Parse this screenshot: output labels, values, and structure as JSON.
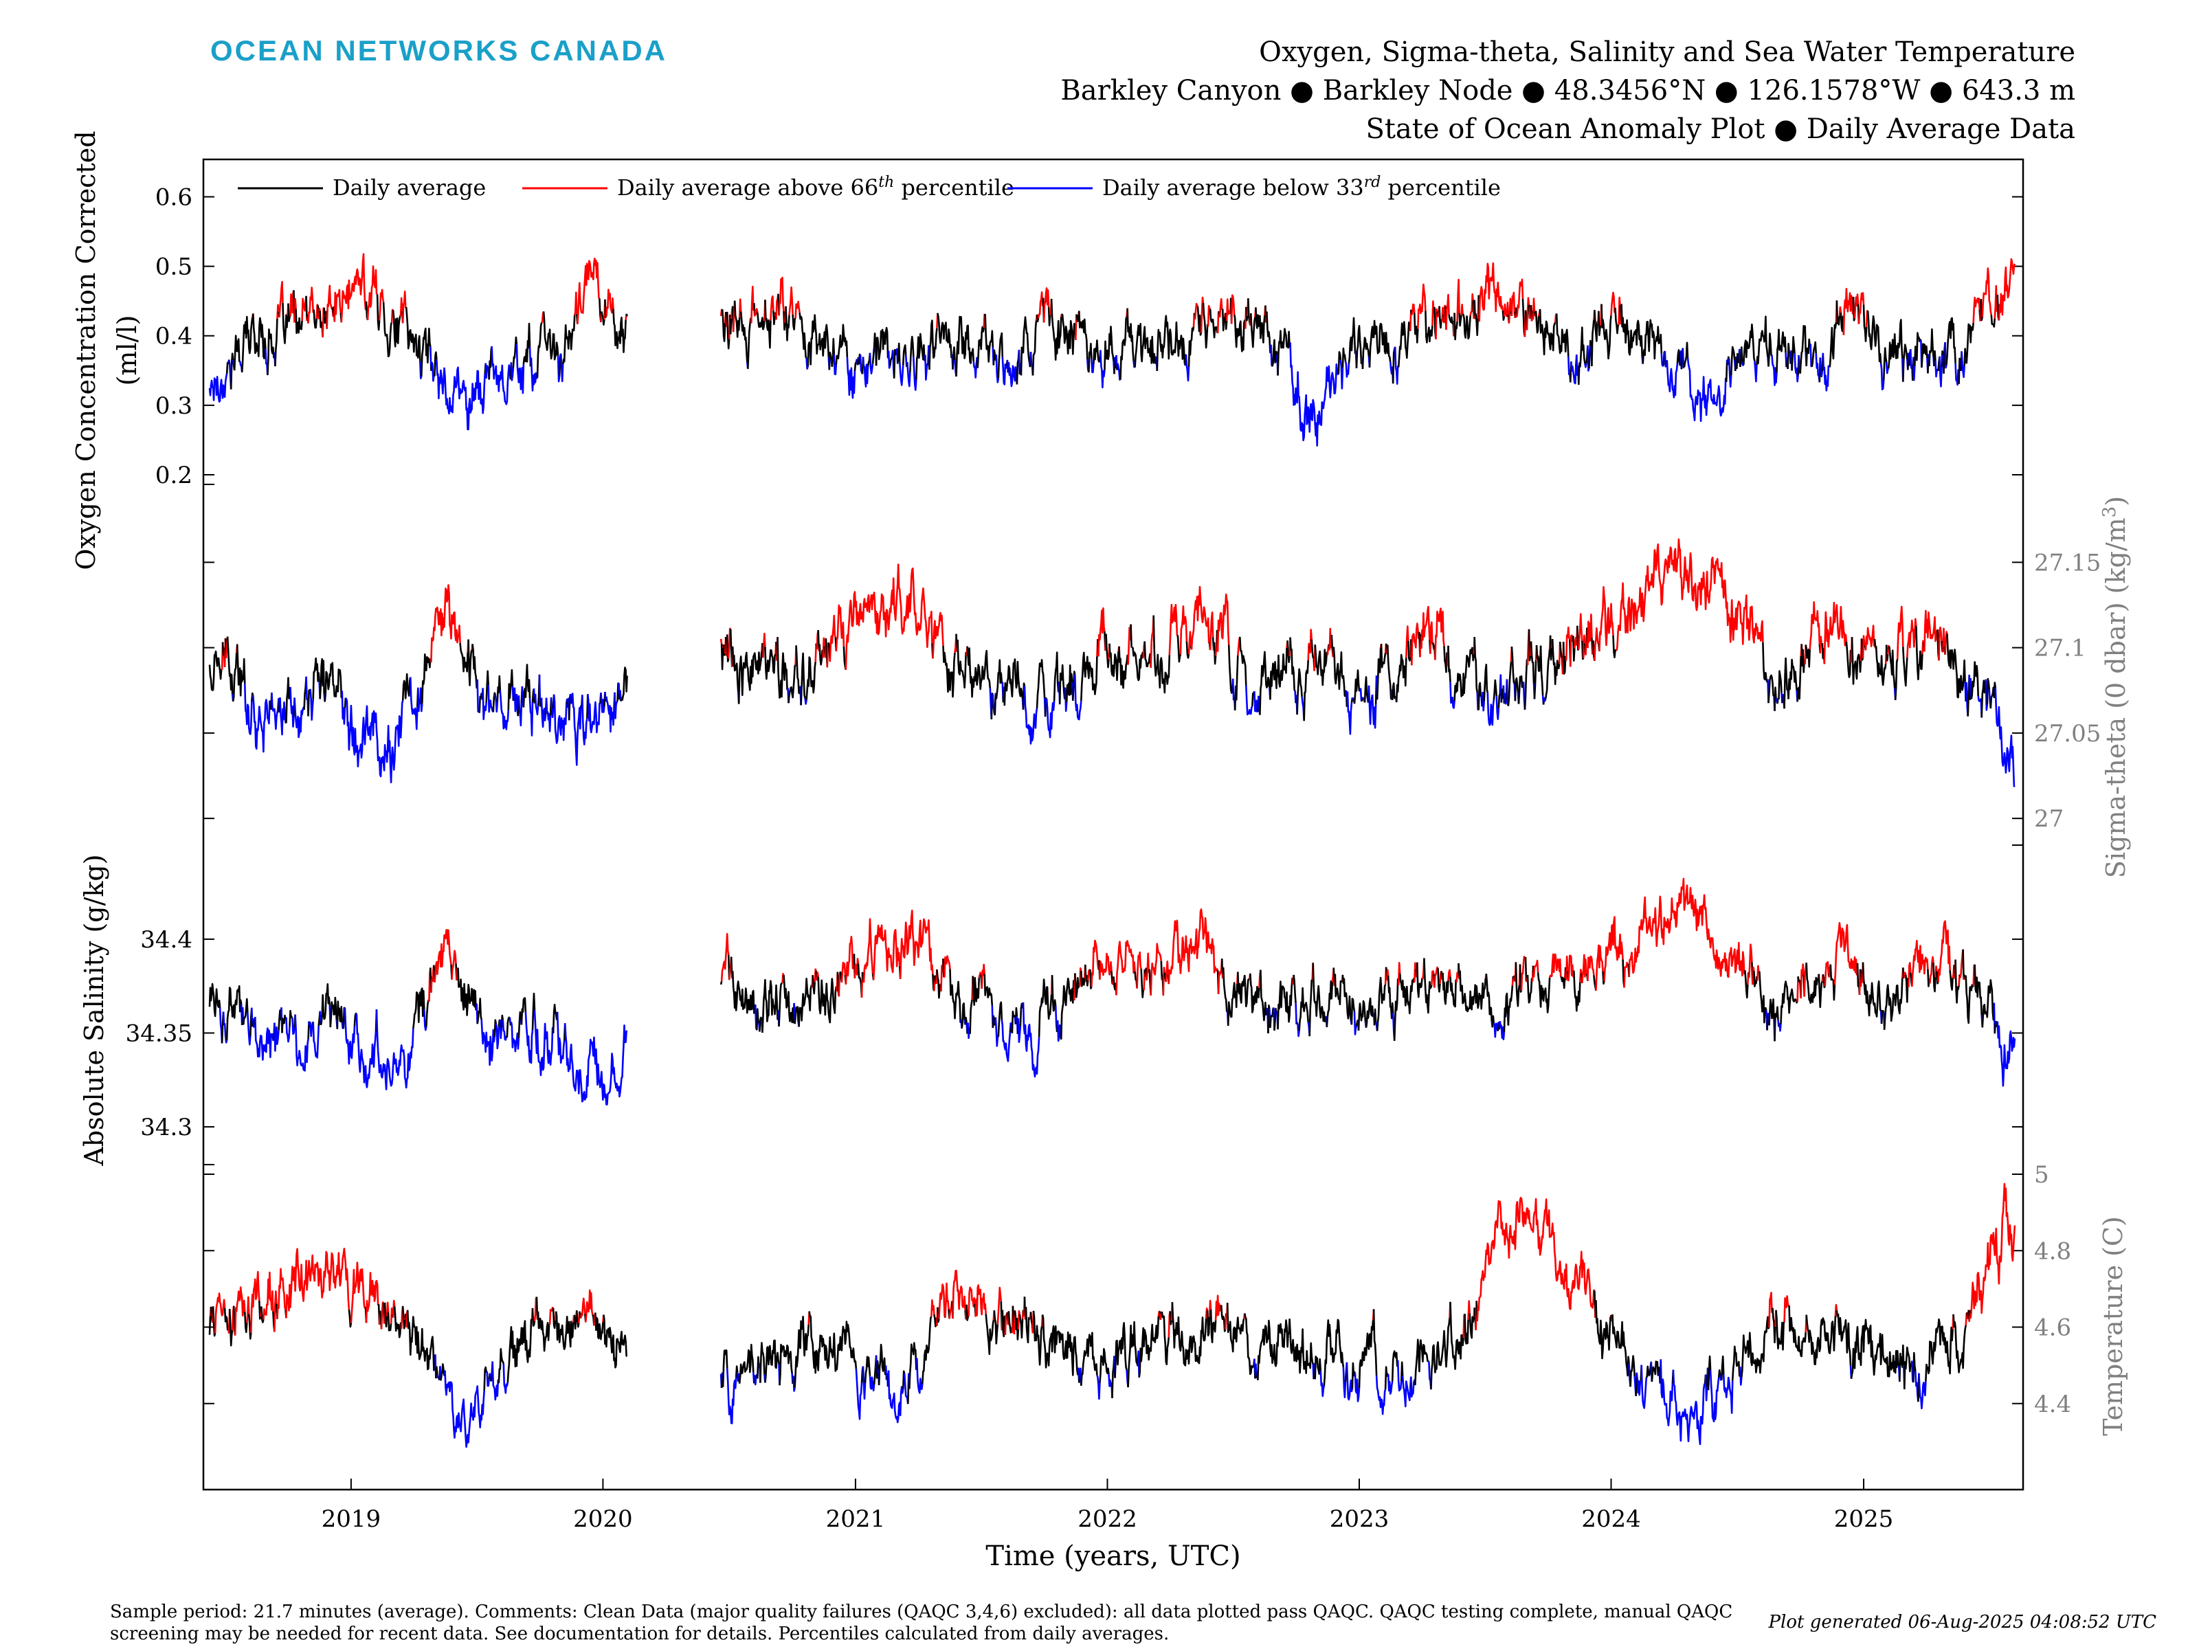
{
  "logo_text": "OCEAN NETWORKS CANADA",
  "title_lines": [
    "Oxygen, Sigma-theta, Salinity and Sea Water Temperature",
    "Barkley Canyon ● Barkley Node ● 48.3456°N ● 126.1578°W ● 643.3 m",
    "State of Ocean Anomaly Plot ● Daily Average Data"
  ],
  "footer_text": "Sample period: 21.7 minutes (average). Comments: Clean Data (major quality failures (QAQC 3,4,6) excluded): all data plotted pass QAQC. QAQC testing complete, manual QAQC screening may be needed for recent data. See documentation for details. Percentiles calculated from daily averages.",
  "generated_text": "Plot generated 06-Aug-2025 04:08:52 UTC",
  "colors": {
    "average": "#000000",
    "above": "#ff0000",
    "below": "#0000ff",
    "right_axis": "#808080",
    "logo": "#1aa0c8"
  },
  "chart_data": {
    "type": "line",
    "xlabel": "Time (years, UTC)",
    "xlim": [
      "2018-06-01",
      "2025-08-20"
    ],
    "x_ticks": [
      "2019",
      "2020",
      "2021",
      "2022",
      "2023",
      "2024",
      "2025"
    ],
    "data_gap": [
      "2020-02-05",
      "2020-06-20"
    ],
    "legend": {
      "placement": "top-left",
      "entries": [
        {
          "name": "Daily average",
          "color": "#000000"
        },
        {
          "name": "Daily average above 66",
          "sup": "th",
          "suffix": " percentile",
          "color": "#ff0000"
        },
        {
          "name": "Daily average below 33",
          "sup": "rd",
          "suffix": " percentile",
          "color": "#0000ff"
        }
      ]
    },
    "panels": [
      {
        "id": "oxygen",
        "ylabel": "Oxygen Concentration Corrected",
        "ylabel_line2": "(ml/l)",
        "axis_side": "left",
        "ylim": [
          0.2,
          0.64
        ],
        "yticks": [
          "0.2",
          "0.3",
          "0.4",
          "0.5",
          "0.6"
        ],
        "percentile_66": 0.43,
        "percentile_33": 0.36,
        "series": [
          {
            "x": [
              "2018-06-10",
              "2018-08-15",
              "2018-11-15",
              "2019-01-20",
              "2019-04-15",
              "2019-06-15",
              "2019-08-15",
              "2019-11-10",
              "2019-12-20",
              "2020-02-01",
              "2020-06-25",
              "2020-09-15",
              "2020-12-15",
              "2021-03-15",
              "2021-05-20",
              "2021-08-01",
              "2021-10-25",
              "2022-01-10",
              "2022-04-20",
              "2022-06-15",
              "2022-08-20",
              "2022-10-25",
              "2023-01-01",
              "2023-03-15",
              "2023-05-20",
              "2023-08-25",
              "2023-11-15",
              "2024-01-15",
              "2024-03-20",
              "2024-05-15",
              "2024-08-01",
              "2024-10-15",
              "2024-12-15",
              "2025-03-15",
              "2025-05-25",
              "2025-08-08"
            ],
            "values": [
              0.33,
              0.4,
              0.42,
              0.47,
              0.38,
              0.31,
              0.36,
              0.38,
              0.5,
              0.39,
              0.39,
              0.44,
              0.37,
              0.36,
              0.4,
              0.37,
              0.42,
              0.38,
              0.4,
              0.43,
              0.42,
              0.27,
              0.4,
              0.41,
              0.43,
              0.44,
              0.38,
              0.44,
              0.37,
              0.31,
              0.4,
              0.37,
              0.43,
              0.37,
              0.38,
              0.47
            ]
          }
        ]
      },
      {
        "id": "sigma",
        "ylabel": "Sigma-theta (0 dbar) (kg/m",
        "ylabel_sup": "3",
        "ylabel_tail": ")",
        "axis_side": "right",
        "ylim": [
          26.99,
          27.19
        ],
        "yticks": [
          "27",
          "27.05",
          "27.1",
          "27.15"
        ],
        "percentile_66": 27.1,
        "percentile_33": 27.07,
        "series": [
          {
            "x": [
              "2018-06-10",
              "2018-09-15",
              "2018-12-10",
              "2019-03-01",
              "2019-05-20",
              "2019-07-15",
              "2019-10-01",
              "2019-12-20",
              "2020-02-01",
              "2020-06-25",
              "2020-10-01",
              "2021-01-20",
              "2021-03-20",
              "2021-06-15",
              "2021-09-15",
              "2021-12-15",
              "2022-03-15",
              "2022-05-15",
              "2022-08-01",
              "2022-11-01",
              "2023-01-15",
              "2023-04-15",
              "2023-07-15",
              "2023-10-15",
              "2024-01-10",
              "2024-04-01",
              "2024-06-15",
              "2024-09-01",
              "2024-11-15",
              "2025-02-01",
              "2025-05-01",
              "2025-06-20",
              "2025-08-08"
            ],
            "values": [
              27.09,
              27.06,
              27.08,
              27.04,
              27.12,
              27.07,
              27.07,
              27.05,
              27.07,
              27.1,
              27.08,
              27.12,
              27.13,
              27.08,
              27.06,
              27.1,
              27.09,
              27.12,
              27.07,
              27.09,
              27.08,
              27.1,
              27.07,
              27.09,
              27.12,
              27.15,
              27.12,
              27.08,
              27.11,
              27.08,
              27.11,
              27.07,
              27.02
            ]
          }
        ]
      },
      {
        "id": "salinity",
        "ylabel": "Absolute Salinity (g/kg)",
        "axis_side": "left",
        "ylim": [
          34.285,
          34.445
        ],
        "yticks": [
          "34.3",
          "34.35",
          "34.4"
        ],
        "percentile_66": 34.38,
        "percentile_33": 34.355,
        "series": [
          {
            "x": [
              "2018-06-10",
              "2018-09-15",
              "2018-12-10",
              "2019-03-01",
              "2019-05-20",
              "2019-07-15",
              "2019-10-01",
              "2019-12-20",
              "2020-02-01",
              "2020-06-25",
              "2020-10-01",
              "2021-01-20",
              "2021-03-20",
              "2021-06-15",
              "2021-09-15",
              "2021-12-15",
              "2022-03-15",
              "2022-05-15",
              "2022-08-01",
              "2022-11-01",
              "2023-01-15",
              "2023-04-15",
              "2023-07-15",
              "2023-10-15",
              "2024-01-10",
              "2024-04-01",
              "2024-06-15",
              "2024-09-01",
              "2024-11-15",
              "2025-02-01",
              "2025-05-01",
              "2025-06-20",
              "2025-08-08"
            ],
            "values": [
              34.37,
              34.34,
              34.36,
              34.33,
              34.39,
              34.35,
              34.35,
              34.33,
              34.35,
              34.38,
              34.36,
              34.39,
              34.4,
              34.37,
              34.35,
              34.39,
              34.38,
              34.4,
              34.36,
              34.37,
              34.36,
              34.38,
              34.36,
              34.38,
              34.39,
              34.42,
              34.4,
              34.36,
              34.39,
              34.37,
              34.39,
              34.36,
              34.34
            ]
          }
        ]
      },
      {
        "id": "temperature",
        "ylabel": "Temperature (C)",
        "axis_side": "right",
        "ylim": [
          4.2,
          5.0
        ],
        "yticks": [
          "4.4",
          "4.6",
          "4.8",
          "5"
        ],
        "percentile_66": 4.63,
        "percentile_33": 4.47,
        "series": [
          {
            "x": [
              "2018-06-10",
              "2018-09-01",
              "2018-12-01",
              "2019-02-15",
              "2019-05-01",
              "2019-06-20",
              "2019-09-01",
              "2019-11-20",
              "2020-02-01",
              "2020-06-25",
              "2020-09-15",
              "2020-12-15",
              "2021-03-01",
              "2021-06-01",
              "2021-09-01",
              "2021-12-01",
              "2022-03-01",
              "2022-05-20",
              "2022-08-15",
              "2022-11-15",
              "2023-02-15",
              "2023-05-15",
              "2023-08-15",
              "2023-11-15",
              "2024-02-15",
              "2024-05-15",
              "2024-08-15",
              "2024-11-15",
              "2025-02-15",
              "2025-05-15",
              "2025-08-08"
            ],
            "values": [
              4.6,
              4.67,
              4.75,
              4.65,
              4.5,
              4.35,
              4.55,
              4.6,
              4.55,
              4.45,
              4.55,
              4.55,
              4.4,
              4.7,
              4.6,
              4.5,
              4.55,
              4.65,
              4.55,
              4.5,
              4.5,
              4.55,
              4.9,
              4.7,
              4.45,
              4.4,
              4.6,
              4.55,
              4.5,
              4.6,
              4.9
            ]
          }
        ]
      }
    ]
  }
}
